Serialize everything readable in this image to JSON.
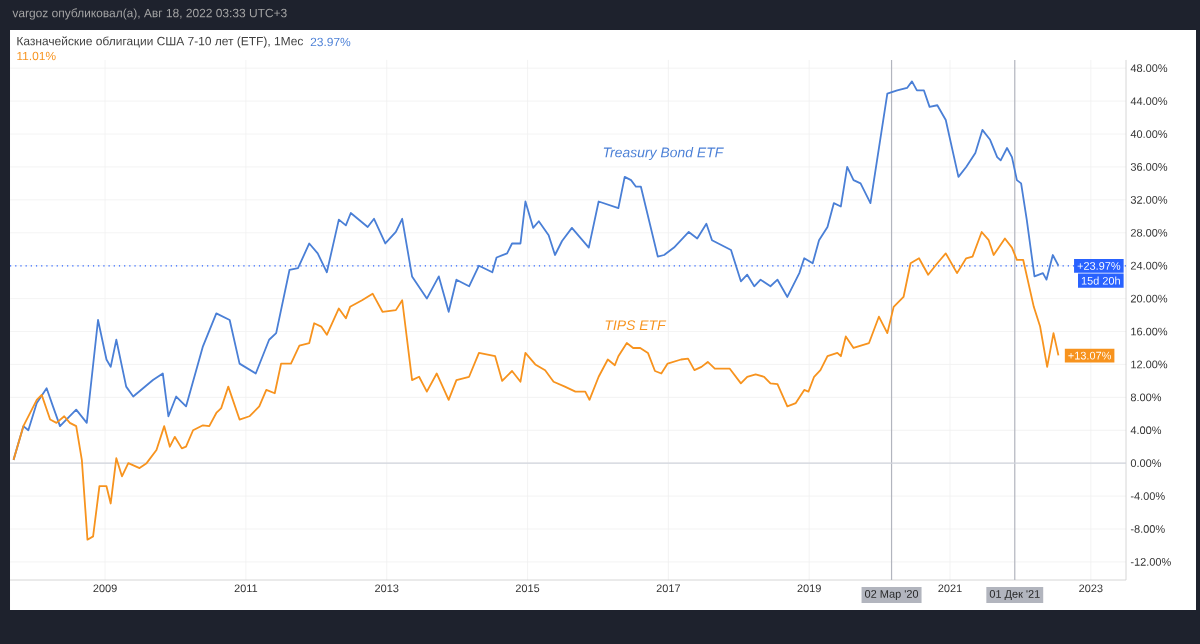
{
  "chart_data": {
    "type": "line",
    "title": "Казначейские облигации США 7-10 лет (ETF), 1Мес",
    "annotations": [
      "vargoz опубликовал(а), Авг 18, 2022 03:33 UTC+3",
      "23.97%",
      "11.01%",
      "15d 20h",
      {
        "text": "+13.07%",
        "x": 2022.54,
        "y": 13.07
      }
    ],
    "xlim": [
      2007.65,
      2023.5
    ],
    "ylim": [
      -14.2,
      49
    ],
    "xticks": [
      2009,
      2011,
      2013,
      2015,
      2017,
      2019,
      2021,
      2023
    ],
    "yticks": [
      {
        "value": -12,
        "label": "-12.00%"
      },
      {
        "value": -8,
        "label": "-8.00%"
      },
      {
        "value": -4,
        "label": "-4.00%"
      },
      {
        "value": 0,
        "label": "0.00%"
      },
      {
        "value": 4,
        "label": "4.00%"
      },
      {
        "value": 8,
        "label": "8.00%"
      },
      {
        "value": 12,
        "label": "12.00%"
      },
      {
        "value": 16,
        "label": "16.00%"
      },
      {
        "value": 20,
        "label": "20.00%"
      },
      {
        "value": 24,
        "label": "24.00%"
      },
      {
        "value": 28,
        "label": "28.00%"
      },
      {
        "value": 32,
        "label": "32.00%"
      },
      {
        "value": 36,
        "label": "36.00%"
      },
      {
        "value": 40,
        "label": "40.00%"
      },
      {
        "value": 44,
        "label": "44.00%"
      },
      {
        "value": 48,
        "label": "48.00%"
      }
    ],
    "grid": true,
    "ref_lines": [
      {
        "axis": "x",
        "value": 2020.17,
        "label": "02 Мар '20",
        "color": "#b2b5be"
      },
      {
        "axis": "x",
        "value": 2021.92,
        "label": "01 Дек '21",
        "color": "#b2b5be"
      },
      {
        "axis": "y",
        "value": 0,
        "color": "#d1d4dc"
      },
      {
        "axis": "y",
        "value": 23.97,
        "label": "+23.97%",
        "color": "#2962ff",
        "line_style": "dotted"
      }
    ],
    "series": [
      {
        "name": "Treasury Bond ETF",
        "color": "#4a7fd6",
        "x": [
          2007.7,
          2007.84,
          2007.91,
          2008.03,
          2008.17,
          2008.26,
          2008.36,
          2008.45,
          2008.59,
          2008.74,
          2008.9,
          2009.02,
          2009.08,
          2009.16,
          2009.3,
          2009.4,
          2009.68,
          2009.82,
          2009.9,
          2010.01,
          2010.15,
          2010.39,
          2010.58,
          2010.77,
          2010.91,
          2011.14,
          2011.33,
          2011.43,
          2011.62,
          2011.74,
          2011.9,
          2012.02,
          2012.15,
          2012.32,
          2012.42,
          2012.49,
          2012.73,
          2012.82,
          2012.98,
          2013.13,
          2013.22,
          2013.36,
          2013.57,
          2013.74,
          2013.88,
          2013.99,
          2014.17,
          2014.31,
          2014.5,
          2014.56,
          2014.71,
          2014.78,
          2014.9,
          2014.97,
          2015.08,
          2015.16,
          2015.3,
          2015.39,
          2015.49,
          2015.63,
          2015.87,
          2016.01,
          2016.29,
          2016.38,
          2016.47,
          2016.54,
          2016.61,
          2016.85,
          2016.94,
          2017.08,
          2017.29,
          2017.41,
          2017.54,
          2017.62,
          2017.89,
          2018.03,
          2018.12,
          2018.22,
          2018.31,
          2018.45,
          2018.55,
          2018.69,
          2018.86,
          2018.93,
          2019.05,
          2019.14,
          2019.26,
          2019.35,
          2019.45,
          2019.54,
          2019.63,
          2019.73,
          2019.87,
          2020.11,
          2020.25,
          2020.39,
          2020.46,
          2020.53,
          2020.63,
          2020.71,
          2020.82,
          2020.94,
          2021.12,
          2021.23,
          2021.36,
          2021.46,
          2021.57,
          2021.67,
          2021.72,
          2021.81,
          2021.88,
          2021.95,
          2022.01,
          2022.09,
          2022.2,
          2022.32,
          2022.37,
          2022.46,
          2022.54
        ],
        "values": [
          0.4,
          4.5,
          4.0,
          7.3,
          9.1,
          6.9,
          4.5,
          5.3,
          6.5,
          4.9,
          17.4,
          12.6,
          11.7,
          15.0,
          9.3,
          8.1,
          10.1,
          10.9,
          5.7,
          8.1,
          6.9,
          14.2,
          18.2,
          17.4,
          12.1,
          10.9,
          15.0,
          15.8,
          23.5,
          23.7,
          26.7,
          25.5,
          23.2,
          29.6,
          28.9,
          30.4,
          28.7,
          29.7,
          26.7,
          28.1,
          29.7,
          22.7,
          20.0,
          22.7,
          18.4,
          22.3,
          21.5,
          24.0,
          23.2,
          25.0,
          25.5,
          26.7,
          26.7,
          31.8,
          28.6,
          29.4,
          27.7,
          25.3,
          27.0,
          28.6,
          26.2,
          31.8,
          31.0,
          34.8,
          34.4,
          33.6,
          33.6,
          25.1,
          25.3,
          26.2,
          28.1,
          27.3,
          29.1,
          27.1,
          25.9,
          22.1,
          22.9,
          21.5,
          22.3,
          21.5,
          22.3,
          20.2,
          23.1,
          24.9,
          24.3,
          27.1,
          28.7,
          31.6,
          31.2,
          36.0,
          34.4,
          34.0,
          31.6,
          44.9,
          45.3,
          45.6,
          46.4,
          45.3,
          45.3,
          43.3,
          43.5,
          41.7,
          34.8,
          36.0,
          37.7,
          40.5,
          39.3,
          37.2,
          36.8,
          38.3,
          37.2,
          34.4,
          34.0,
          29.6,
          22.7,
          23.1,
          22.3,
          25.3,
          24.0
        ]
      },
      {
        "name": "TIPS ETF",
        "color": "#f7931e",
        "x": [
          2007.7,
          2007.84,
          2008.03,
          2008.1,
          2008.22,
          2008.31,
          2008.42,
          2008.5,
          2008.59,
          2008.67,
          2008.75,
          2008.83,
          2008.92,
          2009.02,
          2009.08,
          2009.16,
          2009.24,
          2009.33,
          2009.49,
          2009.59,
          2009.73,
          2009.84,
          2009.92,
          2009.99,
          2010.09,
          2010.15,
          2010.25,
          2010.39,
          2010.48,
          2010.58,
          2010.65,
          2010.75,
          2010.91,
          2011.05,
          2011.19,
          2011.29,
          2011.41,
          2011.5,
          2011.64,
          2011.76,
          2011.9,
          2011.97,
          2012.07,
          2012.15,
          2012.32,
          2012.42,
          2012.48,
          2012.65,
          2012.8,
          2012.94,
          2013.13,
          2013.22,
          2013.36,
          2013.46,
          2013.57,
          2013.71,
          2013.88,
          2013.99,
          2014.17,
          2014.31,
          2014.54,
          2014.64,
          2014.78,
          2014.9,
          2014.97,
          2015.11,
          2015.25,
          2015.37,
          2015.53,
          2015.68,
          2015.82,
          2015.88,
          2016.01,
          2016.14,
          2016.24,
          2016.29,
          2016.41,
          2016.5,
          2016.6,
          2016.71,
          2016.81,
          2016.9,
          2016.99,
          2017.18,
          2017.28,
          2017.37,
          2017.47,
          2017.56,
          2017.66,
          2017.87,
          2018.03,
          2018.12,
          2018.24,
          2018.36,
          2018.45,
          2018.55,
          2018.69,
          2018.81,
          2018.93,
          2018.99,
          2019.07,
          2019.16,
          2019.26,
          2019.4,
          2019.45,
          2019.52,
          2019.63,
          2019.85,
          2019.99,
          2020.11,
          2020.2,
          2020.34,
          2020.44,
          2020.56,
          2020.69,
          2020.82,
          2020.94,
          2021.1,
          2021.23,
          2021.32,
          2021.45,
          2021.55,
          2021.62,
          2021.78,
          2021.88,
          2021.95,
          2022.04,
          2022.19,
          2022.28,
          2022.38,
          2022.47,
          2022.54
        ],
        "values": [
          0.4,
          4.5,
          7.7,
          8.3,
          5.3,
          4.9,
          5.7,
          4.9,
          4.5,
          0.4,
          -9.3,
          -8.9,
          -2.8,
          -2.8,
          -4.9,
          0.6,
          -1.6,
          0.0,
          -0.6,
          0.0,
          1.6,
          4.5,
          2.0,
          3.2,
          1.8,
          2.0,
          4.0,
          4.6,
          4.5,
          6.1,
          6.7,
          9.3,
          5.3,
          5.7,
          6.9,
          8.9,
          8.5,
          12.1,
          12.1,
          14.3,
          14.6,
          17.0,
          16.6,
          15.6,
          18.8,
          17.6,
          19.0,
          19.8,
          20.6,
          18.4,
          18.6,
          19.8,
          10.1,
          10.5,
          8.7,
          10.9,
          7.7,
          10.1,
          10.5,
          13.4,
          13.0,
          10.0,
          11.2,
          9.9,
          13.4,
          12.0,
          11.3,
          9.9,
          9.3,
          8.7,
          8.7,
          7.7,
          10.5,
          12.6,
          11.9,
          13.0,
          14.6,
          14.0,
          14.0,
          13.4,
          11.2,
          10.9,
          12.1,
          12.6,
          12.7,
          11.3,
          11.7,
          12.3,
          11.5,
          11.5,
          9.7,
          10.5,
          10.8,
          10.5,
          9.7,
          9.6,
          6.9,
          7.3,
          8.9,
          8.7,
          10.5,
          11.3,
          13.0,
          13.4,
          13.0,
          15.4,
          14.0,
          14.6,
          17.8,
          15.8,
          19.0,
          20.2,
          24.3,
          24.9,
          22.9,
          24.3,
          25.5,
          23.1,
          24.9,
          25.1,
          28.1,
          27.1,
          25.3,
          27.3,
          26.2,
          24.7,
          24.7,
          19.0,
          16.6,
          11.7,
          15.8,
          13.1
        ]
      }
    ]
  }
}
